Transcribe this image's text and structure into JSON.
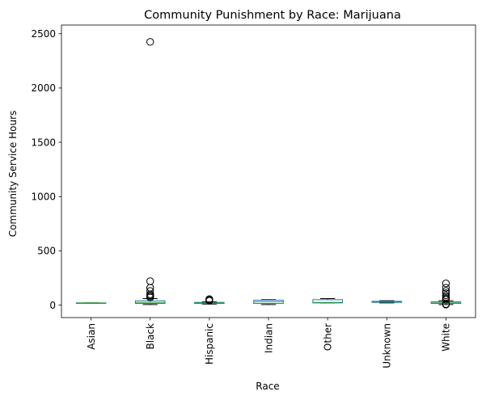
{
  "chart_data": {
    "type": "box",
    "title": "Community Punishment by Race: Marijuana",
    "xlabel": "Race",
    "ylabel": "Community Service Hours",
    "ylim": [
      -115,
      2580
    ],
    "yticks": [
      0,
      500,
      1000,
      1500,
      2000,
      2500
    ],
    "grid": false,
    "colors": {
      "box": "#1f77b4",
      "median": "#2ca02c",
      "whisker": "#000000",
      "flier": "#000000"
    },
    "categories": [
      "Asian",
      "Black",
      "Hispanic",
      "Indian",
      "Other",
      "Unknown",
      "White"
    ],
    "boxes": [
      {
        "name": "Asian",
        "whislo": 20,
        "q1": 20,
        "med": 20,
        "q3": 20,
        "whishi": 20,
        "fliers": []
      },
      {
        "name": "Black",
        "whislo": 5,
        "q1": 15,
        "med": 25,
        "q3": 40,
        "whishi": 60,
        "fliers": [
          70,
          80,
          90,
          100,
          130,
          160,
          220,
          2425
        ]
      },
      {
        "name": "Hispanic",
        "whislo": 10,
        "q1": 15,
        "med": 20,
        "q3": 25,
        "whishi": 30,
        "fliers": [
          40,
          45,
          50,
          55
        ]
      },
      {
        "name": "Indian",
        "whislo": 5,
        "q1": 15,
        "med": 30,
        "q3": 45,
        "whishi": 50,
        "fliers": []
      },
      {
        "name": "Other",
        "whislo": 20,
        "q1": 20,
        "med": 25,
        "q3": 50,
        "whishi": 60,
        "fliers": []
      },
      {
        "name": "Unknown",
        "whislo": 20,
        "q1": 25,
        "med": 30,
        "q3": 35,
        "whishi": 40,
        "fliers": []
      },
      {
        "name": "White",
        "whislo": 5,
        "q1": 15,
        "med": 20,
        "q3": 30,
        "whishi": 40,
        "fliers": [
          5,
          10,
          50,
          60,
          75,
          90,
          110,
          130,
          160,
          200
        ]
      }
    ]
  }
}
